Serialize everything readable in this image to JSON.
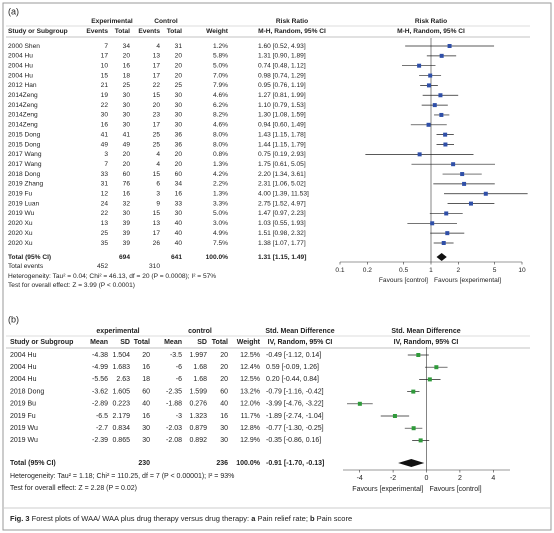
{
  "panels": [
    {
      "label": "(a)",
      "group_headers": [
        "Experimental",
        "Control",
        "Risk Ratio",
        "Risk Ratio"
      ],
      "columns": [
        "Study or Subgroup",
        "Events",
        "Total",
        "Events",
        "Total",
        "Weight",
        "M-H, Random, 95% CI",
        "M-H, Random, 95% CI"
      ],
      "rows": [
        {
          "study": "2000 Shen",
          "cells": [
            7,
            34,
            4,
            31,
            "1.2%"
          ],
          "ci": "1.60 [0.52, 4.93]",
          "plot": [
            1.6,
            0.52,
            4.93
          ]
        },
        {
          "study": "2004  Hu",
          "cells": [
            17,
            20,
            13,
            20,
            "5.8%"
          ],
          "ci": "1.31 [0.90, 1.89]",
          "plot": [
            1.31,
            0.9,
            1.89
          ]
        },
        {
          "study": "2004  Hu",
          "cells": [
            10,
            16,
            17,
            20,
            "5.0%"
          ],
          "ci": "0.74 [0.48, 1.12]",
          "plot": [
            0.74,
            0.48,
            1.12
          ]
        },
        {
          "study": "2004  Hu",
          "cells": [
            15,
            18,
            17,
            20,
            "7.0%"
          ],
          "ci": "0.98 [0.74, 1.29]",
          "plot": [
            0.98,
            0.74,
            1.29
          ]
        },
        {
          "study": "2012 Han",
          "cells": [
            21,
            25,
            22,
            25,
            "7.9%"
          ],
          "ci": "0.95 [0.76, 1.19]",
          "plot": [
            0.95,
            0.76,
            1.19
          ]
        },
        {
          "study": "2014Zeng",
          "cells": [
            19,
            30,
            15,
            30,
            "4.6%"
          ],
          "ci": "1.27 [0.81, 1.99]",
          "plot": [
            1.27,
            0.81,
            1.99
          ]
        },
        {
          "study": "2014Zeng",
          "cells": [
            22,
            30,
            20,
            30,
            "6.2%"
          ],
          "ci": "1.10 [0.79, 1.53]",
          "plot": [
            1.1,
            0.79,
            1.53
          ]
        },
        {
          "study": "2014Zeng",
          "cells": [
            30,
            30,
            23,
            30,
            "8.2%"
          ],
          "ci": "1.30 [1.08, 1.59]",
          "plot": [
            1.3,
            1.08,
            1.59
          ]
        },
        {
          "study": "2014Zeng",
          "cells": [
            16,
            30,
            17,
            30,
            "4.6%"
          ],
          "ci": "0.94 [0.60, 1.49]",
          "plot": [
            0.94,
            0.6,
            1.49
          ]
        },
        {
          "study": "2015 Dong",
          "cells": [
            41,
            41,
            25,
            36,
            "8.0%"
          ],
          "ci": "1.43 [1.15, 1.78]",
          "plot": [
            1.43,
            1.15,
            1.78
          ]
        },
        {
          "study": "2015 Dong",
          "cells": [
            49,
            49,
            25,
            36,
            "8.0%"
          ],
          "ci": "1.44 [1.15, 1.79]",
          "plot": [
            1.44,
            1.15,
            1.79
          ]
        },
        {
          "study": "2017 Wang",
          "cells": [
            3,
            20,
            4,
            20,
            "0.8%"
          ],
          "ci": "0.75 [0.19, 2.93]",
          "plot": [
            0.75,
            0.19,
            2.93
          ]
        },
        {
          "study": "2017 Wang",
          "cells": [
            7,
            20,
            4,
            20,
            "1.3%"
          ],
          "ci": "1.75 [0.61, 5.05]",
          "plot": [
            1.75,
            0.61,
            5.05
          ]
        },
        {
          "study": "2018 Dong",
          "cells": [
            33,
            60,
            15,
            60,
            "4.2%"
          ],
          "ci": "2.20 [1.34, 3.61]",
          "plot": [
            2.2,
            1.34,
            3.61
          ]
        },
        {
          "study": "2019 Zhang",
          "cells": [
            31,
            76,
            6,
            34,
            "2.2%"
          ],
          "ci": "2.31 [1.06, 5.02]",
          "plot": [
            2.31,
            1.06,
            5.02
          ]
        },
        {
          "study": "2019 Fu",
          "cells": [
            12,
            16,
            3,
            16,
            "1.3%"
          ],
          "ci": "4.00 [1.39, 11.53]",
          "plot": [
            4.0,
            1.39,
            11.53
          ]
        },
        {
          "study": "2019 Luan",
          "cells": [
            24,
            32,
            9,
            33,
            "3.3%"
          ],
          "ci": "2.75 [1.52, 4.97]",
          "plot": [
            2.75,
            1.52,
            4.97
          ]
        },
        {
          "study": "2019 Wu",
          "cells": [
            22,
            30,
            15,
            30,
            "5.0%"
          ],
          "ci": "1.47 [0.97, 2.23]",
          "plot": [
            1.47,
            0.97,
            2.23
          ]
        },
        {
          "study": "2020 Xu",
          "cells": [
            13,
            39,
            13,
            40,
            "3.0%"
          ],
          "ci": "1.03 [0.55, 1.93]",
          "plot": [
            1.03,
            0.55,
            1.93
          ]
        },
        {
          "study": "2020 Xu",
          "cells": [
            25,
            39,
            17,
            40,
            "4.9%"
          ],
          "ci": "1.51 [0.98, 2.32]",
          "plot": [
            1.51,
            0.98,
            2.32
          ]
        },
        {
          "study": "2020 Xu",
          "cells": [
            35,
            39,
            26,
            40,
            "7.5%"
          ],
          "ci": "1.38 [1.07, 1.77]",
          "plot": [
            1.38,
            1.07,
            1.77
          ]
        }
      ],
      "total": {
        "label": "Total (95% CI)",
        "exp_total": 694,
        "ctrl_total": 641,
        "weight": "100.0%",
        "ci": "1.31 [1.15, 1.49]",
        "plot": [
          1.31,
          1.15,
          1.49
        ]
      },
      "total_events": {
        "label": "Total events",
        "exp": 452,
        "ctrl": 310
      },
      "heterogeneity": "Heterogeneity: Tau² = 0.04; Chi² = 46.13, df = 20 (P = 0.0008); I² = 57%",
      "overall": "Test for overall effect: Z = 3.99 (P < 0.0001)",
      "axis": {
        "log": true,
        "xlim": [
          0.1,
          10
        ],
        "ticks": [
          0.1,
          0.2,
          0.5,
          1,
          2,
          5,
          10
        ]
      },
      "favours": [
        "Favours [control]",
        "Favours [experimental]"
      ]
    },
    {
      "label": "(b)",
      "group_headers": [
        "experimental",
        "control",
        "Std. Mean Difference",
        "Std. Mean Difference"
      ],
      "columns": [
        "Study or Subgroup",
        "Mean",
        "SD",
        "Total",
        "Mean",
        "SD",
        "Total",
        "Weight",
        "IV, Random, 95% CI",
        "IV, Random, 95% CI"
      ],
      "rows": [
        {
          "study": "2004  Hu",
          "cells": [
            -4.38,
            1.504,
            20,
            -3.5,
            1.997,
            20,
            "12.5%"
          ],
          "ci": "-0.49 [-1.12, 0.14]",
          "plot": [
            -0.49,
            -1.12,
            0.14
          ]
        },
        {
          "study": "2004  Hu",
          "cells": [
            -4.99,
            1.683,
            16,
            -6,
            1.68,
            20,
            "12.4%"
          ],
          "ci": "0.59 [-0.09, 1.26]",
          "plot": [
            0.59,
            -0.09,
            1.26
          ]
        },
        {
          "study": "2004  Hu",
          "cells": [
            -5.56,
            2.63,
            18,
            -6,
            1.68,
            20,
            "12.5%"
          ],
          "ci": "0.20 [-0.44, 0.84]",
          "plot": [
            0.2,
            -0.44,
            0.84
          ]
        },
        {
          "study": "2018 Dong",
          "cells": [
            -3.62,
            1.605,
            60,
            -2.35,
            1.599,
            60,
            "13.2%"
          ],
          "ci": "-0.79 [-1.16, -0.42]",
          "plot": [
            -0.79,
            -1.16,
            -0.42
          ]
        },
        {
          "study": "2019 Bu",
          "cells": [
            -2.89,
            0.223,
            40,
            -1.88,
            0.276,
            40,
            "12.0%"
          ],
          "ci": "-3.99 [-4.76, -3.22]",
          "plot": [
            -3.99,
            -4.76,
            -3.22
          ]
        },
        {
          "study": "2019 Fu",
          "cells": [
            -6.5,
            2.179,
            16,
            -3,
            1.323,
            16,
            "11.7%"
          ],
          "ci": "-1.89 [-2.74, -1.04]",
          "plot": [
            -1.89,
            -2.74,
            -1.04
          ]
        },
        {
          "study": "2019 Wu",
          "cells": [
            -2.7,
            0.834,
            30,
            -2.03,
            0.879,
            30,
            "12.8%"
          ],
          "ci": "-0.77 [-1.30, -0.25]",
          "plot": [
            -0.77,
            -1.3,
            -0.25
          ]
        },
        {
          "study": "2019 Wu",
          "cells": [
            -2.39,
            0.865,
            30,
            -2.08,
            0.892,
            30,
            "12.9%"
          ],
          "ci": "-0.35 [-0.86, 0.16]",
          "plot": [
            -0.35,
            -0.86,
            0.16
          ]
        }
      ],
      "total": {
        "label": "Total (95% CI)",
        "exp_total": 230,
        "ctrl_total": 236,
        "weight": "100.0%",
        "ci": "-0.91 [-1.70, -0.13]",
        "plot": [
          -0.91,
          -1.7,
          -0.13
        ]
      },
      "heterogeneity": "Heterogeneity: Tau² = 1.18; Chi² = 110.25, df = 7 (P < 0.00001); I² = 93%",
      "overall": "Test for overall effect: Z = 2.28 (P = 0.02)",
      "axis": {
        "log": false,
        "xlim": [
          -5,
          5
        ],
        "ticks": [
          -4,
          -2,
          0,
          2,
          4
        ]
      },
      "favours": [
        "Favours [experimental]",
        "Favours [control]"
      ]
    }
  ],
  "caption": [
    "Fig. 3",
    " Forest plots of WAA/ WAA plus drug therapy versus drug therapy: ",
    "a",
    " Pain relief rate; ",
    "b",
    " Pain score"
  ]
}
